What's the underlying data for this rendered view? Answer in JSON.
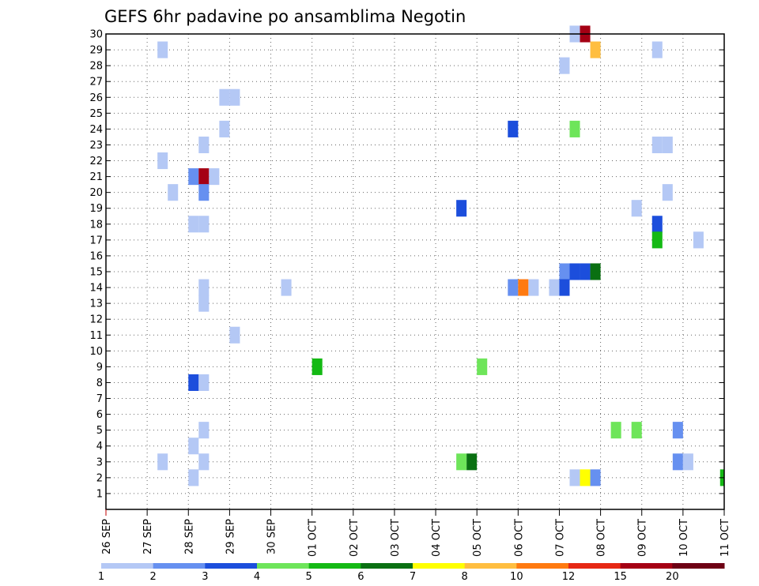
{
  "chart_data": {
    "type": "heatmap",
    "title": "GEFS 6hr padavine po ansamblima Negotin",
    "xlabel": "",
    "ylabel": "",
    "x_tick_labels": [
      "26 SEP",
      "27 SEP",
      "28 SEP",
      "29 SEP",
      "30 SEP",
      "01 OCT",
      "02 OCT",
      "03 OCT",
      "04 OCT",
      "05 OCT",
      "06 OCT",
      "07 OCT",
      "08 OCT",
      "09 OCT",
      "10 OCT",
      "11 OCT"
    ],
    "y_tick_labels": [
      "1",
      "2",
      "3",
      "4",
      "5",
      "6",
      "7",
      "8",
      "9",
      "10",
      "11",
      "12",
      "13",
      "14",
      "15",
      "16",
      "17",
      "18",
      "19",
      "20",
      "21",
      "22",
      "23",
      "24",
      "25",
      "26",
      "27",
      "28",
      "29",
      "30"
    ],
    "xlim_days": [
      0,
      15
    ],
    "ylim": [
      0,
      30
    ],
    "step_hours": 6,
    "grid": true,
    "legend_placement": "bottom",
    "colorbar": {
      "labels": [
        "1",
        "2",
        "3",
        "4",
        "5",
        "6",
        "7",
        "8",
        "10",
        "12",
        "15",
        "20"
      ],
      "colors": [
        "#b4c8f5",
        "#6690f0",
        "#1c4edc",
        "#6ee55a",
        "#14b914",
        "#0a7012",
        "#ffff00",
        "#ffbe40",
        "#ff7a10",
        "#e62814",
        "#a50014",
        "#6e0014"
      ]
    },
    "cells": [
      {
        "m": 30,
        "d": 11.25,
        "v": 1.5
      },
      {
        "m": 30,
        "d": 11.5,
        "v": 15
      },
      {
        "m": 29,
        "d": 1.25,
        "v": 1.5
      },
      {
        "m": 29,
        "d": 11.75,
        "v": 8
      },
      {
        "m": 29,
        "d": 13.25,
        "v": 1.5
      },
      {
        "m": 28,
        "d": 11,
        "v": 1.5
      },
      {
        "m": 26,
        "d": 2.75,
        "v": 1.5
      },
      {
        "m": 26,
        "d": 3,
        "v": 1.5
      },
      {
        "m": 24,
        "d": 2.75,
        "v": 1.5
      },
      {
        "m": 24,
        "d": 9.75,
        "v": 3.5
      },
      {
        "m": 24,
        "d": 11.25,
        "v": 4.5
      },
      {
        "m": 23,
        "d": 2.25,
        "v": 1.5
      },
      {
        "m": 23,
        "d": 13.25,
        "v": 1.5
      },
      {
        "m": 23,
        "d": 13.5,
        "v": 1.5
      },
      {
        "m": 22,
        "d": 1.25,
        "v": 1.5
      },
      {
        "m": 21,
        "d": 2,
        "v": 2.5
      },
      {
        "m": 21,
        "d": 2.25,
        "v": 17
      },
      {
        "m": 21,
        "d": 2.5,
        "v": 1.5
      },
      {
        "m": 20,
        "d": 1.5,
        "v": 1.5
      },
      {
        "m": 20,
        "d": 2.25,
        "v": 2.5
      },
      {
        "m": 20,
        "d": 13.5,
        "v": 1.5
      },
      {
        "m": 19,
        "d": 8.5,
        "v": 3.5
      },
      {
        "m": 19,
        "d": 12.75,
        "v": 1.5
      },
      {
        "m": 18,
        "d": 2,
        "v": 1.5
      },
      {
        "m": 18,
        "d": 2.25,
        "v": 1.5
      },
      {
        "m": 18,
        "d": 13.25,
        "v": 3.5
      },
      {
        "m": 17,
        "d": 13.25,
        "v": 5.5
      },
      {
        "m": 17,
        "d": 14.25,
        "v": 1.5
      },
      {
        "m": 15,
        "d": 11,
        "v": 2.5
      },
      {
        "m": 15,
        "d": 11.25,
        "v": 3.5
      },
      {
        "m": 15,
        "d": 11.5,
        "v": 3.5
      },
      {
        "m": 15,
        "d": 11.75,
        "v": 6.5
      },
      {
        "m": 14,
        "d": 2.25,
        "v": 1.5
      },
      {
        "m": 14,
        "d": 4.25,
        "v": 1.5
      },
      {
        "m": 14,
        "d": 9.75,
        "v": 2.5
      },
      {
        "m": 14,
        "d": 10,
        "v": 11
      },
      {
        "m": 14,
        "d": 10.25,
        "v": 1.5
      },
      {
        "m": 14,
        "d": 10.75,
        "v": 1.5
      },
      {
        "m": 14,
        "d": 11,
        "v": 3.5
      },
      {
        "m": 13,
        "d": 2.25,
        "v": 1.5
      },
      {
        "m": 11,
        "d": 3,
        "v": 1.5
      },
      {
        "m": 9,
        "d": 5,
        "v": 5.5
      },
      {
        "m": 9,
        "d": 9,
        "v": 4.5
      },
      {
        "m": 8,
        "d": 2,
        "v": 3.5
      },
      {
        "m": 8,
        "d": 2.25,
        "v": 1.5
      },
      {
        "m": 5,
        "d": 2.25,
        "v": 1.5
      },
      {
        "m": 5,
        "d": 12.25,
        "v": 4.5
      },
      {
        "m": 5,
        "d": 12.75,
        "v": 4.5
      },
      {
        "m": 5,
        "d": 13.75,
        "v": 2.5
      },
      {
        "m": 4,
        "d": 2,
        "v": 1.5
      },
      {
        "m": 3,
        "d": 1.25,
        "v": 1.5
      },
      {
        "m": 3,
        "d": 2.25,
        "v": 1.5
      },
      {
        "m": 3,
        "d": 8.5,
        "v": 4.5
      },
      {
        "m": 3,
        "d": 8.75,
        "v": 6.5
      },
      {
        "m": 3,
        "d": 13.75,
        "v": 2.5
      },
      {
        "m": 3,
        "d": 14,
        "v": 1.5
      },
      {
        "m": 2,
        "d": 2,
        "v": 1.5
      },
      {
        "m": 2,
        "d": 11.25,
        "v": 1.5
      },
      {
        "m": 2,
        "d": 11.5,
        "v": 7.5
      },
      {
        "m": 2,
        "d": 11.75,
        "v": 2.5
      },
      {
        "m": 2,
        "d": 14.9,
        "v": 5.5
      }
    ]
  }
}
